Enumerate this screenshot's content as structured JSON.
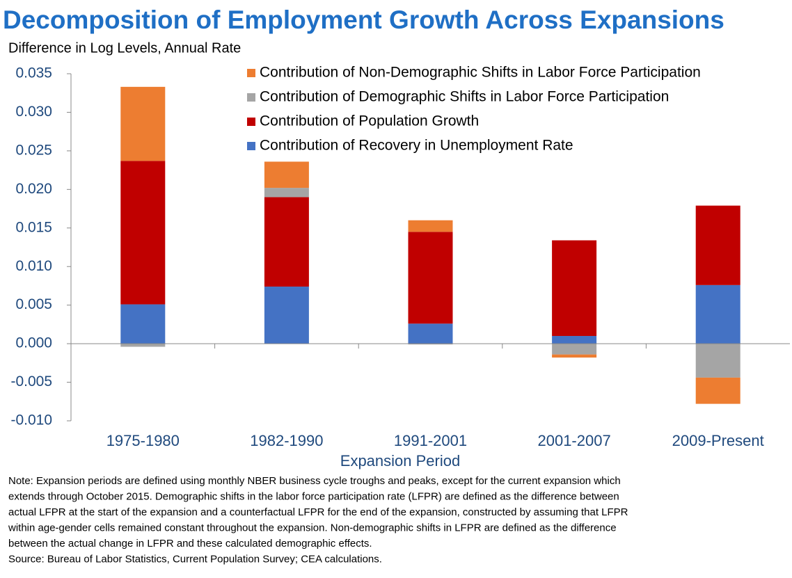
{
  "chart_data": {
    "type": "stacked-bar",
    "title": "Decomposition of Employment Growth Across Expansions",
    "subtitle": "Difference in Log Levels, Annual Rate",
    "x_label": "Expansion Period",
    "categories": [
      "1975-1980",
      "1982-1990",
      "1991-2001",
      "2001-2007",
      "2009-Present"
    ],
    "series": [
      {
        "name": "Contribution of Recovery in Unemployment Rate",
        "color": "#4472c4",
        "values": [
          0.0051,
          0.0074,
          0.0026,
          0.001,
          0.0076
        ]
      },
      {
        "name": "Contribution of Population Growth",
        "color": "#c00000",
        "values": [
          0.0186,
          0.0116,
          0.0119,
          0.0124,
          0.0103
        ]
      },
      {
        "name": "Contribution of Demographic Shifts in Labor Force Participation",
        "color": "#a5a5a5",
        "values": [
          -0.0004,
          0.0012,
          -0.0001,
          -0.0014,
          -0.0044
        ]
      },
      {
        "name": "Contribution of Non-Demographic Shifts in Labor Force Participation",
        "color": "#ed7d31",
        "values": [
          0.0096,
          0.0034,
          0.0015,
          -0.0004,
          -0.0034
        ]
      }
    ],
    "ylim": [
      -0.01,
      0.035
    ],
    "yticks": [
      {
        "value": -0.01,
        "label": "-0.010"
      },
      -0.005,
      {
        "value": 0,
        "label": "0.000"
      },
      0.005,
      {
        "value": 0.01,
        "label": "0.010"
      },
      0.015,
      {
        "value": 0.02,
        "label": "0.020"
      },
      0.025,
      {
        "value": 0.03,
        "label": "0.030"
      },
      0.035
    ],
    "grid": false,
    "legend": "top-right",
    "notes": [
      "Note: Expansion periods are defined using monthly NBER business cycle troughs and peaks, except for the current expansion which",
      "extends through October 2015.  Demographic shifts in the labor force participation rate (LFPR) are defined as the difference between",
      "actual LFPR at the start of the expansion and a counterfactual LFPR for the end of the expansion, constructed by assuming that LFPR",
      "within age-gender cells remained constant throughout the expansion. Non-demographic shifts in LFPR are defined as the difference",
      "between the actual change in LFPR and these calculated demographic effects."
    ],
    "source": "Source: Bureau of Labor Statistics, Current Population Survey; CEA calculations."
  }
}
